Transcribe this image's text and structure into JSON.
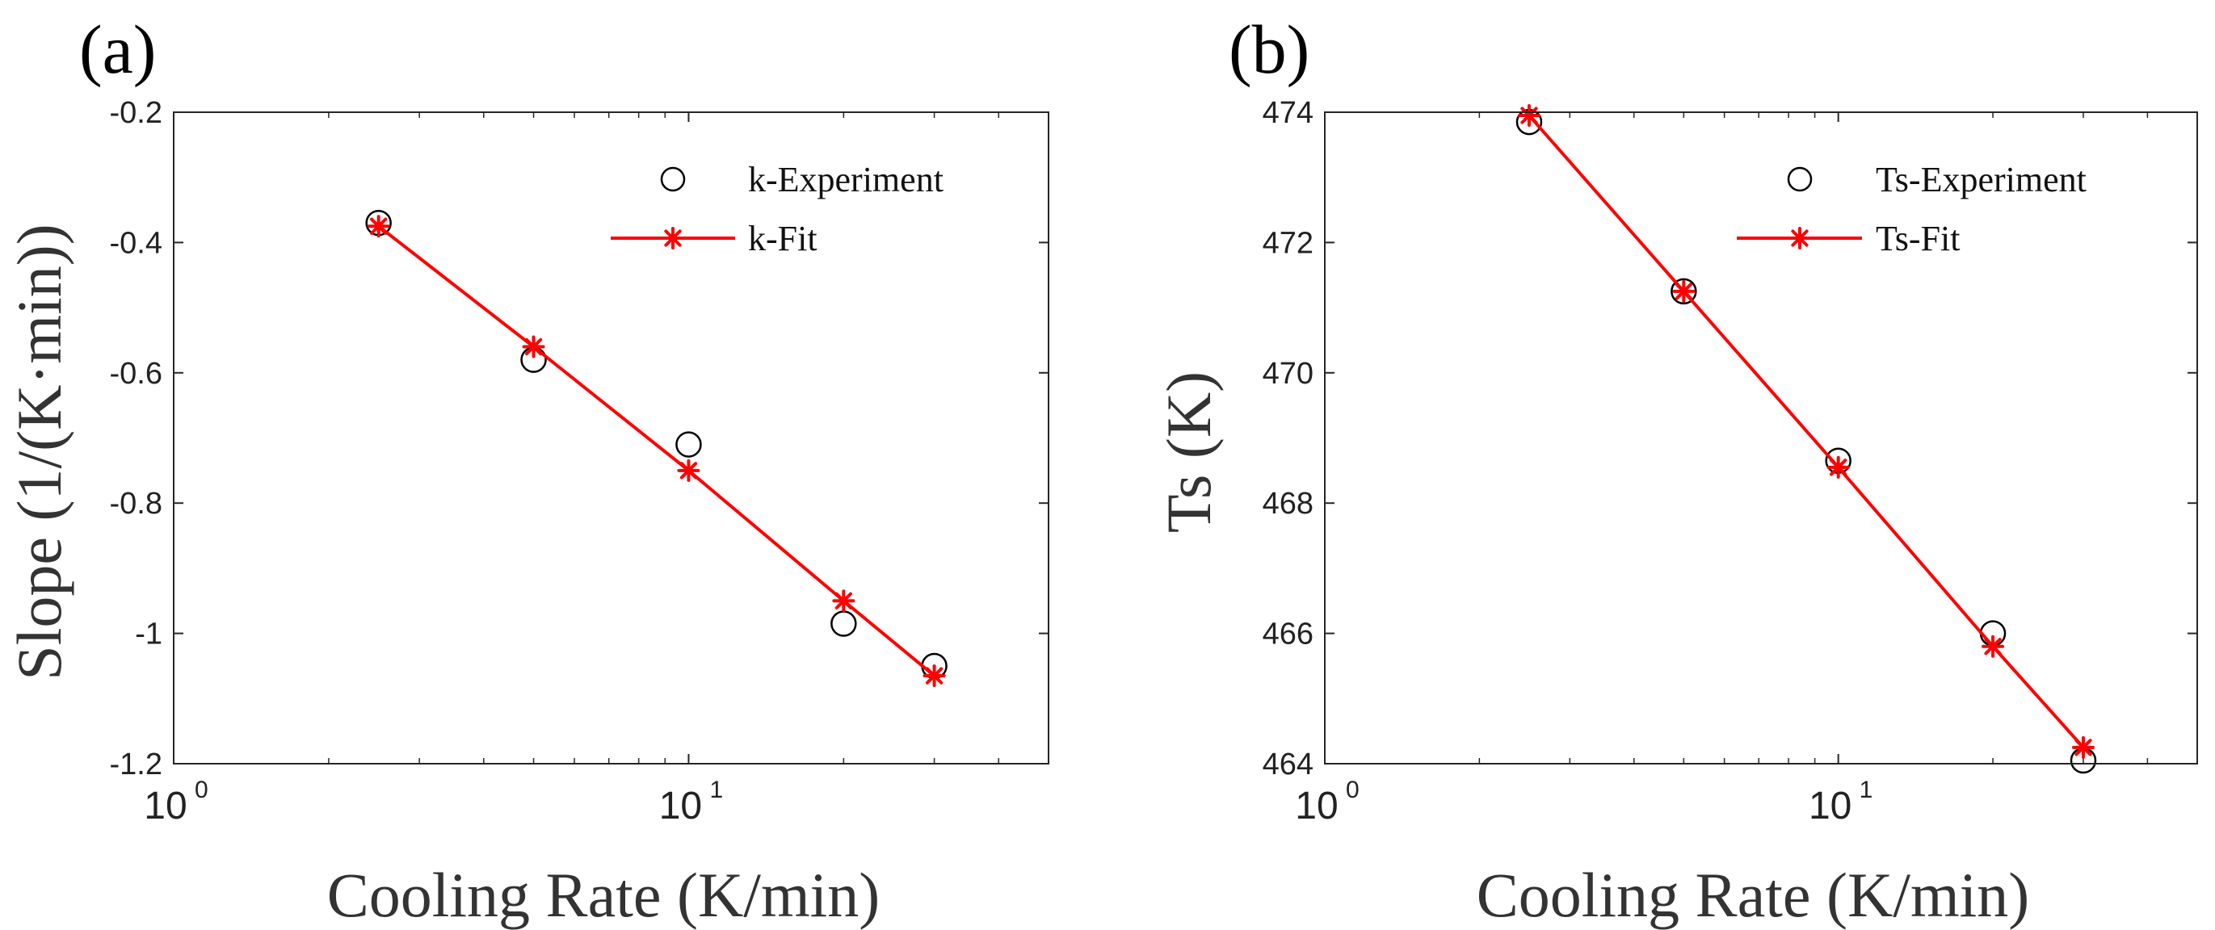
{
  "chart_data": [
    {
      "panel_label": "(a)",
      "type": "line",
      "xscale": "log",
      "xlabel": "Cooling Rate (K/min)",
      "ylabel": "Slope (1/(K·min))",
      "xlim": [
        1,
        50
      ],
      "ylim": [
        -1.2,
        -0.2
      ],
      "yticks": [
        -1.2,
        -1.0,
        -0.8,
        -0.6,
        -0.4,
        -0.2
      ],
      "ytick_labels": [
        "-1.2",
        "-1",
        "-0.8",
        "-0.6",
        "-0.4",
        "-0.2"
      ],
      "xticks": [
        {
          "value": 1,
          "base": "10",
          "exp": "0"
        },
        {
          "value": 10,
          "base": "10",
          "exp": "1"
        }
      ],
      "legend_position": "top-right",
      "series": [
        {
          "name": "k-Experiment",
          "style": "markers",
          "marker": "circle",
          "color": "#000000",
          "x": [
            2.5,
            5,
            10,
            20,
            30
          ],
          "y": [
            -0.37,
            -0.58,
            -0.71,
            -0.985,
            -1.05
          ]
        },
        {
          "name": "k-Fit",
          "style": "line+markers",
          "marker": "asterisk",
          "color": "#ff0000",
          "x": [
            2.5,
            5,
            10,
            20,
            30
          ],
          "y": [
            -0.375,
            -0.56,
            -0.75,
            -0.95,
            -1.065
          ]
        }
      ]
    },
    {
      "panel_label": "(b)",
      "type": "line",
      "xscale": "log",
      "xlabel": "Cooling Rate (K/min)",
      "ylabel": "Ts (K)",
      "xlim": [
        1,
        50
      ],
      "ylim": [
        464,
        474
      ],
      "yticks": [
        464,
        466,
        468,
        470,
        472,
        474
      ],
      "ytick_labels": [
        "464",
        "466",
        "468",
        "470",
        "472",
        "474"
      ],
      "xticks": [
        {
          "value": 1,
          "base": "10",
          "exp": "0"
        },
        {
          "value": 10,
          "base": "10",
          "exp": "1"
        }
      ],
      "legend_position": "top-right",
      "series": [
        {
          "name": "Ts-Experiment",
          "style": "markers",
          "marker": "circle",
          "color": "#000000",
          "x": [
            2.5,
            5,
            10,
            20,
            30
          ],
          "y": [
            473.85,
            471.25,
            468.65,
            466.0,
            464.05
          ]
        },
        {
          "name": "Ts-Fit",
          "style": "line+markers",
          "marker": "asterisk",
          "color": "#ff0000",
          "x": [
            2.5,
            5,
            10,
            20,
            30
          ],
          "y": [
            473.95,
            471.25,
            468.55,
            465.8,
            464.25
          ]
        }
      ]
    }
  ]
}
